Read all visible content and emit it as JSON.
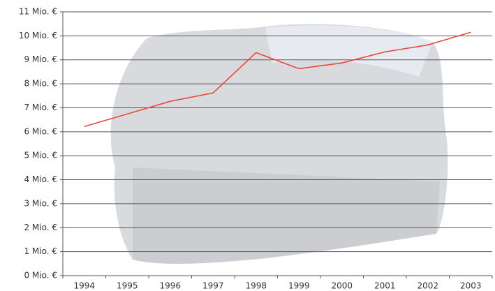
{
  "chart_data": {
    "type": "line",
    "categories": [
      "1994",
      "1995",
      "1996",
      "1997",
      "1998",
      "1999",
      "2000",
      "2001",
      "2002",
      "2003"
    ],
    "values": [
      6.22,
      6.74,
      7.27,
      7.62,
      9.3,
      8.63,
      8.87,
      9.33,
      9.62,
      10.15
    ],
    "color": "#e8483a",
    "ylim": [
      0,
      11
    ],
    "yticks": [
      {
        "value": 0,
        "label": "0 Mio. €"
      },
      {
        "value": 1,
        "label": "1 Mio. €"
      },
      {
        "value": 2,
        "label": "2 Mio. €"
      },
      {
        "value": 3,
        "label": "3 Mio. €"
      },
      {
        "value": 4,
        "label": "4 Mio. €"
      },
      {
        "value": 5,
        "label": "5 Mio. €"
      },
      {
        "value": 6,
        "label": "6 Mio. €"
      },
      {
        "value": 7,
        "label": "7 Mio. €"
      },
      {
        "value": 8,
        "label": "8 Mio. €"
      },
      {
        "value": 9,
        "label": "9 Mio. €"
      },
      {
        "value": 10,
        "label": "10 Mio. €"
      },
      {
        "value": 11,
        "label": "11 Mio. €"
      }
    ],
    "grid": true
  }
}
